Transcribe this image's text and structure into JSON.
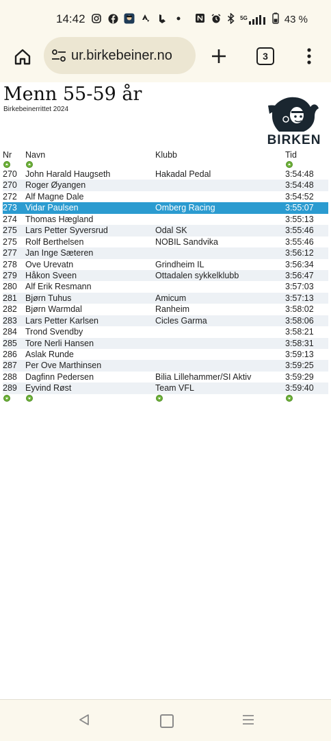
{
  "status": {
    "time": "14:42",
    "battery": "43 %",
    "network": "5G"
  },
  "browser": {
    "url": "ur.birkebeiner.no",
    "tab_count": "3"
  },
  "page": {
    "title": "Menn 55-59 år",
    "subtitle": "Birkebeinerrittet 2024",
    "logo_text": "BIRKEN",
    "columns": {
      "nr": "Nr",
      "name": "Navn",
      "club": "Klubb",
      "time": "Tid"
    },
    "rows": [
      {
        "nr": "270",
        "name": "John Harald Haugseth",
        "club": "Hakadal Pedal",
        "time": "3:54:48"
      },
      {
        "nr": "270",
        "name": "Roger Øyangen",
        "club": "",
        "time": "3:54:48"
      },
      {
        "nr": "272",
        "name": "Alf Magne Dale",
        "club": "",
        "time": "3:54:52"
      },
      {
        "nr": "273",
        "name": "Vidar Paulsen",
        "club": "Omberg Racing",
        "time": "3:55:07"
      },
      {
        "nr": "274",
        "name": "Thomas Hægland",
        "club": "",
        "time": "3:55:13"
      },
      {
        "nr": "275",
        "name": "Lars Petter Syversrud",
        "club": "Odal SK",
        "time": "3:55:46"
      },
      {
        "nr": "275",
        "name": "Rolf Berthelsen",
        "club": "NOBIL Sandvika",
        "time": "3:55:46"
      },
      {
        "nr": "277",
        "name": "Jan Inge Sæteren",
        "club": "",
        "time": "3:56:12"
      },
      {
        "nr": "278",
        "name": "Ove Urevatn",
        "club": "Grindheim IL",
        "time": "3:56:34"
      },
      {
        "nr": "279",
        "name": "Håkon Sveen",
        "club": "Ottadalen sykkelklubb",
        "time": "3:56:47"
      },
      {
        "nr": "280",
        "name": "Alf Erik Resmann",
        "club": "",
        "time": "3:57:03"
      },
      {
        "nr": "281",
        "name": "Bjørn Tuhus",
        "club": "Amicum",
        "time": "3:57:13"
      },
      {
        "nr": "282",
        "name": "Bjørn Warmdal",
        "club": "Ranheim",
        "time": "3:58:02"
      },
      {
        "nr": "283",
        "name": "Lars Petter Karlsen",
        "club": "Cicles Garma",
        "time": "3:58:06"
      },
      {
        "nr": "284",
        "name": "Trond Svendby",
        "club": "",
        "time": "3:58:21"
      },
      {
        "nr": "285",
        "name": "Tore Nerli Hansen",
        "club": "",
        "time": "3:58:31"
      },
      {
        "nr": "286",
        "name": "Aslak Runde",
        "club": "",
        "time": "3:59:13"
      },
      {
        "nr": "287",
        "name": "Per Ove Marthinsen",
        "club": "",
        "time": "3:59:25"
      },
      {
        "nr": "288",
        "name": "Dagfinn Pedersen",
        "club": "Bilia Lillehammer/SI Aktiv",
        "time": "3:59:29"
      },
      {
        "nr": "289",
        "name": "Eyvind Røst",
        "club": "Team VFL",
        "time": "3:59:40"
      }
    ],
    "highlight_color": "#2b9bd0"
  }
}
